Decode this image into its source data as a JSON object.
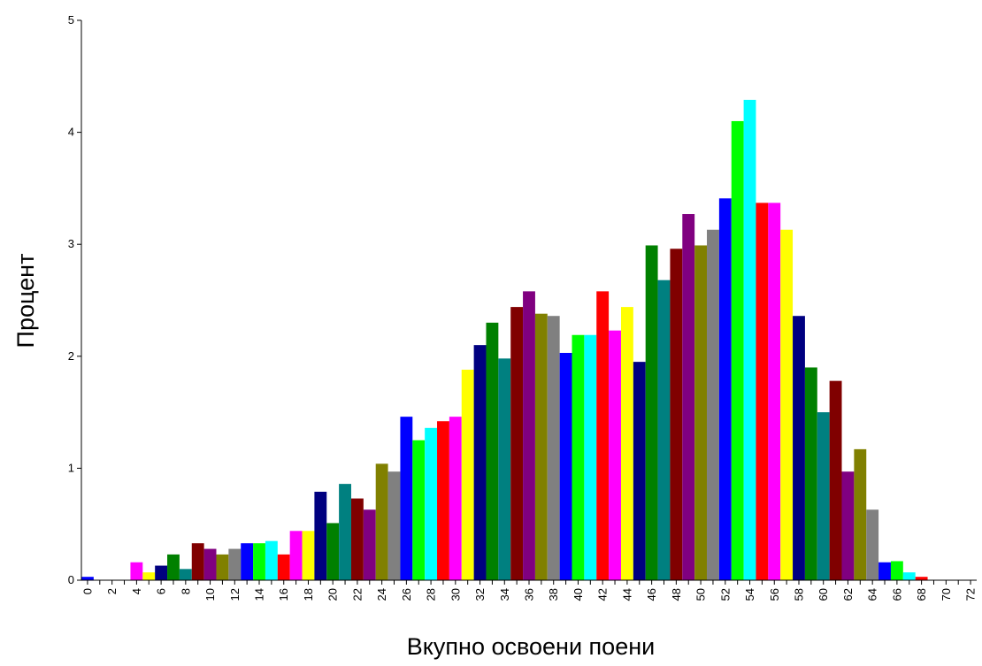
{
  "chart_data": {
    "type": "bar",
    "xlabel": "Вкупно освоени поени",
    "ylabel": "Процент",
    "ylim": [
      0,
      5
    ],
    "y_ticks": [
      0,
      1,
      2,
      3,
      4,
      5
    ],
    "x_tick_labels": [
      "0",
      "2",
      "4",
      "6",
      "8",
      "10",
      "12",
      "14",
      "16",
      "18",
      "20",
      "22",
      "24",
      "26",
      "28",
      "30",
      "32",
      "34",
      "36",
      "38",
      "40",
      "42",
      "44",
      "46",
      "48",
      "50",
      "52",
      "54",
      "56",
      "58",
      "60",
      "62",
      "64",
      "66",
      "68",
      "70",
      "72"
    ],
    "x_range": [
      0,
      72
    ],
    "grid": false,
    "legend": "none",
    "bars": [
      {
        "x": 0,
        "value": 0.03,
        "color": "#0000ff"
      },
      {
        "x": 1,
        "value": 0,
        "color": "#008000"
      },
      {
        "x": 2,
        "value": 0,
        "color": "#008080"
      },
      {
        "x": 3,
        "value": 0,
        "color": "#800000"
      },
      {
        "x": 4,
        "value": 0.16,
        "color": "#ff00ff"
      },
      {
        "x": 5,
        "value": 0.07,
        "color": "#ffff00"
      },
      {
        "x": 6,
        "value": 0.13,
        "color": "#000080"
      },
      {
        "x": 7,
        "value": 0.23,
        "color": "#008000"
      },
      {
        "x": 8,
        "value": 0.1,
        "color": "#008080"
      },
      {
        "x": 9,
        "value": 0.33,
        "color": "#800000"
      },
      {
        "x": 10,
        "value": 0.28,
        "color": "#800080"
      },
      {
        "x": 11,
        "value": 0.23,
        "color": "#808000"
      },
      {
        "x": 12,
        "value": 0.28,
        "color": "#808080"
      },
      {
        "x": 13,
        "value": 0.33,
        "color": "#0000ff"
      },
      {
        "x": 14,
        "value": 0.33,
        "color": "#00ff00"
      },
      {
        "x": 15,
        "value": 0.35,
        "color": "#00ffff"
      },
      {
        "x": 16,
        "value": 0.23,
        "color": "#ff0000"
      },
      {
        "x": 17,
        "value": 0.44,
        "color": "#ff00ff"
      },
      {
        "x": 18,
        "value": 0.44,
        "color": "#ffff00"
      },
      {
        "x": 19,
        "value": 0.79,
        "color": "#000080"
      },
      {
        "x": 20,
        "value": 0.51,
        "color": "#008000"
      },
      {
        "x": 21,
        "value": 0.86,
        "color": "#008080"
      },
      {
        "x": 22,
        "value": 0.73,
        "color": "#800000"
      },
      {
        "x": 23,
        "value": 0.63,
        "color": "#800080"
      },
      {
        "x": 24,
        "value": 1.04,
        "color": "#808000"
      },
      {
        "x": 25,
        "value": 0.97,
        "color": "#808080"
      },
      {
        "x": 26,
        "value": 1.46,
        "color": "#0000ff"
      },
      {
        "x": 27,
        "value": 1.25,
        "color": "#00ff00"
      },
      {
        "x": 28,
        "value": 1.36,
        "color": "#00ffff"
      },
      {
        "x": 29,
        "value": 1.42,
        "color": "#ff0000"
      },
      {
        "x": 30,
        "value": 1.46,
        "color": "#ff00ff"
      },
      {
        "x": 31,
        "value": 1.88,
        "color": "#ffff00"
      },
      {
        "x": 32,
        "value": 2.1,
        "color": "#000080"
      },
      {
        "x": 33,
        "value": 2.3,
        "color": "#008000"
      },
      {
        "x": 34,
        "value": 1.98,
        "color": "#008080"
      },
      {
        "x": 35,
        "value": 2.44,
        "color": "#800000"
      },
      {
        "x": 36,
        "value": 2.58,
        "color": "#800080"
      },
      {
        "x": 37,
        "value": 2.38,
        "color": "#808000"
      },
      {
        "x": 38,
        "value": 2.36,
        "color": "#808080"
      },
      {
        "x": 39,
        "value": 2.03,
        "color": "#0000ff"
      },
      {
        "x": 40,
        "value": 2.19,
        "color": "#00ff00"
      },
      {
        "x": 41,
        "value": 2.19,
        "color": "#00ffff"
      },
      {
        "x": 42,
        "value": 2.58,
        "color": "#ff0000"
      },
      {
        "x": 43,
        "value": 2.23,
        "color": "#ff00ff"
      },
      {
        "x": 44,
        "value": 2.44,
        "color": "#ffff00"
      },
      {
        "x": 45,
        "value": 1.95,
        "color": "#000080"
      },
      {
        "x": 46,
        "value": 2.99,
        "color": "#008000"
      },
      {
        "x": 47,
        "value": 2.68,
        "color": "#008080"
      },
      {
        "x": 48,
        "value": 2.96,
        "color": "#800000"
      },
      {
        "x": 49,
        "value": 3.27,
        "color": "#800080"
      },
      {
        "x": 50,
        "value": 2.99,
        "color": "#808000"
      },
      {
        "x": 51,
        "value": 3.13,
        "color": "#808080"
      },
      {
        "x": 52,
        "value": 3.41,
        "color": "#0000ff"
      },
      {
        "x": 53,
        "value": 4.1,
        "color": "#00ff00"
      },
      {
        "x": 54,
        "value": 4.29,
        "color": "#00ffff"
      },
      {
        "x": 55,
        "value": 3.37,
        "color": "#ff0000"
      },
      {
        "x": 56,
        "value": 3.37,
        "color": "#ff00ff"
      },
      {
        "x": 57,
        "value": 3.13,
        "color": "#ffff00"
      },
      {
        "x": 58,
        "value": 2.36,
        "color": "#000080"
      },
      {
        "x": 59,
        "value": 1.9,
        "color": "#008000"
      },
      {
        "x": 60,
        "value": 1.5,
        "color": "#008080"
      },
      {
        "x": 61,
        "value": 1.78,
        "color": "#800000"
      },
      {
        "x": 62,
        "value": 0.97,
        "color": "#800080"
      },
      {
        "x": 63,
        "value": 1.17,
        "color": "#808000"
      },
      {
        "x": 64,
        "value": 0.63,
        "color": "#808080"
      },
      {
        "x": 65,
        "value": 0.16,
        "color": "#0000ff"
      },
      {
        "x": 66,
        "value": 0.17,
        "color": "#00ff00"
      },
      {
        "x": 67,
        "value": 0.07,
        "color": "#00ffff"
      },
      {
        "x": 68,
        "value": 0.03,
        "color": "#ff0000"
      },
      {
        "x": 69,
        "value": 0,
        "color": "#ff00ff"
      },
      {
        "x": 70,
        "value": 0,
        "color": "#ffff00"
      },
      {
        "x": 71,
        "value": 0,
        "color": "#000080"
      },
      {
        "x": 72,
        "value": 0,
        "color": "#008000"
      }
    ]
  }
}
